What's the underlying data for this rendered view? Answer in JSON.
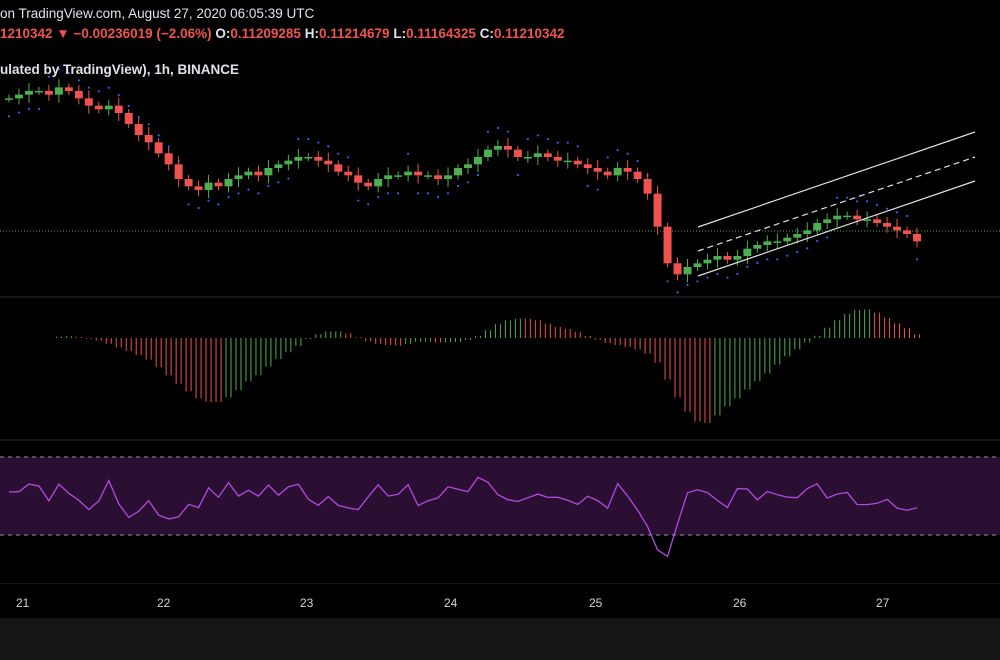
{
  "header": {
    "line1": "on TradingView.com, August 27, 2020 06:05:39 UTC",
    "price_tail": "1210342",
    "change_arrow": "▼",
    "change": "−0.00236019 (−2.06%)",
    "o_label": "O:",
    "o_value": "0.11209285",
    "h_label": "H:",
    "h_value": "0.11214679",
    "l_label": "L:",
    "l_value": "0.11164325",
    "c_label": "C:",
    "c_value": "0.11210342",
    "line3": "ulated by TradingView), 1h, BINANCE"
  },
  "colors": {
    "up": "#26a69a",
    "down": "#ef5350",
    "up_candle": "#4caf50",
    "dots": "#2962ff",
    "rsi": "#b24adf",
    "rsi_band": "#2a0f33",
    "channel": "#e0e0e0",
    "hline": "#4caf50"
  },
  "chart_data": {
    "type": "candlestick",
    "x_ticks": [
      "21",
      "22",
      "23",
      "24",
      "25",
      "26",
      "27"
    ],
    "price_range": [
      0.1105,
      0.1165
    ],
    "close_series": [
      0.116,
      0.1161,
      0.1162,
      0.1162,
      0.1161,
      0.1163,
      0.1162,
      0.116,
      0.1158,
      0.1157,
      0.1158,
      0.1156,
      0.1153,
      0.115,
      0.1148,
      0.1145,
      0.1142,
      0.1138,
      0.1136,
      0.1135,
      0.1137,
      0.1136,
      0.1138,
      0.1139,
      0.114,
      0.1139,
      0.1141,
      0.1142,
      0.1143,
      0.1144,
      0.1144,
      0.1143,
      0.1142,
      0.114,
      0.1139,
      0.1137,
      0.1136,
      0.1138,
      0.1139,
      0.1139,
      0.114,
      0.1139,
      0.1139,
      0.1138,
      0.1139,
      0.1141,
      0.1142,
      0.1144,
      0.1146,
      0.1147,
      0.1146,
      0.1144,
      0.1144,
      0.1145,
      0.1144,
      0.1143,
      0.1143,
      0.1142,
      0.1141,
      0.114,
      0.1139,
      0.1141,
      0.114,
      0.1138,
      0.1134,
      0.1125,
      0.1115,
      0.1112,
      0.1114,
      0.1115,
      0.1116,
      0.1117,
      0.1116,
      0.1117,
      0.1119,
      0.112,
      0.1121,
      0.1121,
      0.1122,
      0.1123,
      0.1124,
      0.1126,
      0.1127,
      0.1128,
      0.1128,
      0.1127,
      0.1127,
      0.1126,
      0.1125,
      0.1124,
      0.1123,
      0.1121
    ]
  }
}
